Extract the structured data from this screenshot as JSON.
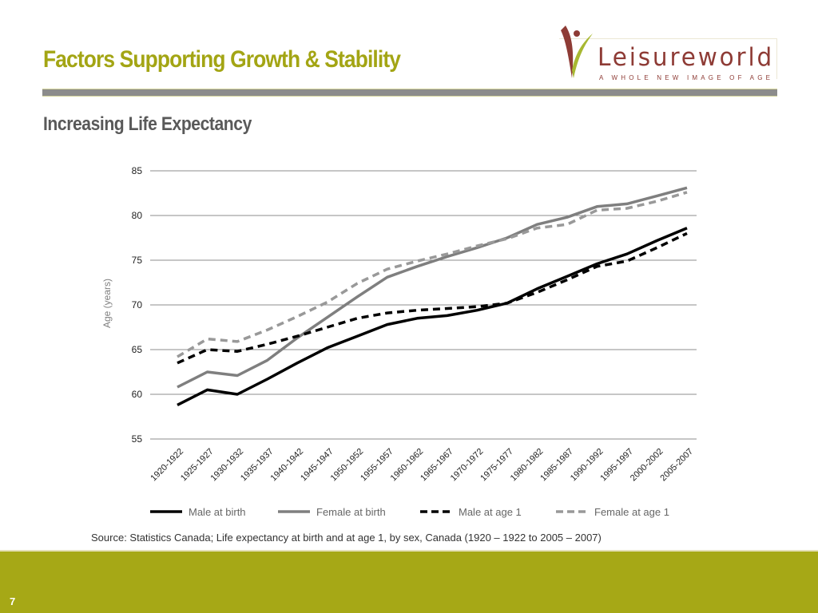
{
  "header": {
    "title": "Factors Supporting Growth & Stability",
    "subtitle": "Increasing Life Expectancy"
  },
  "logo": {
    "name": "Leisureworld",
    "tagline": "A WHOLE NEW IMAGE OF AGE",
    "colors": {
      "primary": "#8e3b35",
      "accent": "#a8b832"
    }
  },
  "colors": {
    "title": "#a3a514",
    "subtitle": "#595959",
    "footer": "#a6a816",
    "rule": "#8c8c8c"
  },
  "chart_data": {
    "type": "line",
    "title": "",
    "xlabel": "",
    "ylabel": "Age (years)",
    "ylim": [
      55,
      85
    ],
    "yticks": [
      85,
      80,
      75,
      70,
      65,
      60,
      55
    ],
    "grid": true,
    "legend_position": "bottom",
    "categories": [
      "1920-1922",
      "1925-1927",
      "1930-1932",
      "1935-1937",
      "1940-1942",
      "1945-1947",
      "1950-1952",
      "1955-1957",
      "1960-1962",
      "1965-1967",
      "1970-1972",
      "1975-1977",
      "1980-1982",
      "1985-1987",
      "1990-1992",
      "1995-1997",
      "2000-2002",
      "2005-2007"
    ],
    "series": [
      {
        "name": "Male at birth",
        "color": "#000000",
        "dashed": false,
        "values": [
          58.8,
          60.5,
          60.0,
          61.7,
          63.5,
          65.2,
          66.5,
          67.8,
          68.5,
          68.8,
          69.4,
          70.2,
          71.8,
          73.2,
          74.6,
          75.7,
          77.2,
          78.6
        ]
      },
      {
        "name": "Female at birth",
        "color": "#7f7f7f",
        "dashed": false,
        "values": [
          60.8,
          62.5,
          62.1,
          63.8,
          66.3,
          68.6,
          70.9,
          73.1,
          74.3,
          75.4,
          76.4,
          77.5,
          79.0,
          79.8,
          81.0,
          81.3,
          82.2,
          83.1
        ]
      },
      {
        "name": "Male at age 1",
        "color": "#000000",
        "dashed": true,
        "values": [
          63.5,
          65.0,
          64.8,
          65.6,
          66.5,
          67.5,
          68.5,
          69.1,
          69.4,
          69.6,
          69.8,
          70.2,
          71.4,
          72.8,
          74.3,
          74.9,
          76.4,
          78.0
        ]
      },
      {
        "name": "Female at age 1",
        "color": "#999999",
        "dashed": true,
        "values": [
          64.2,
          66.2,
          65.9,
          67.2,
          68.7,
          70.3,
          72.4,
          74.0,
          74.9,
          75.7,
          76.6,
          77.4,
          78.6,
          79.0,
          80.6,
          80.8,
          81.6,
          82.6
        ]
      }
    ]
  },
  "source": "Source: Statistics Canada; Life expectancy at birth and at age 1, by sex, Canada (1920 – 1922 to 2005 – 2007)",
  "footer": {
    "page_number": "7"
  }
}
